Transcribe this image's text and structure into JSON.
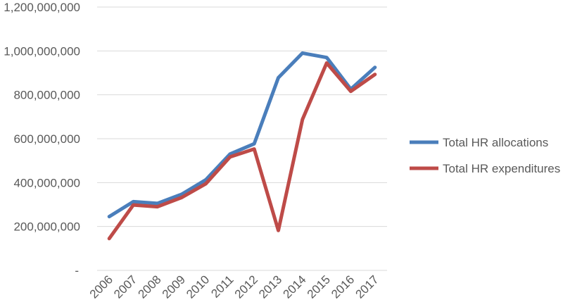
{
  "chart_data": {
    "type": "line",
    "title": "",
    "xlabel": "",
    "ylabel": "",
    "categories": [
      "2006",
      "2007",
      "2008",
      "2009",
      "2010",
      "2011",
      "2012",
      "2013",
      "2014",
      "2015",
      "2016",
      "2017"
    ],
    "series": [
      {
        "name": "Total HR allocations",
        "color": "#4a7ebb",
        "values": [
          245000000,
          313000000,
          305000000,
          347000000,
          413000000,
          530000000,
          577000000,
          878000000,
          990000000,
          970000000,
          826000000,
          925000000
        ]
      },
      {
        "name": "Total HR expenditures",
        "color": "#be4b48",
        "values": [
          145000000,
          298000000,
          290000000,
          332000000,
          395000000,
          517000000,
          553000000,
          182000000,
          688000000,
          945000000,
          816000000,
          893000000
        ]
      }
    ],
    "ylim": [
      0,
      1200000000
    ],
    "y_ticks": [
      0,
      200000000,
      400000000,
      600000000,
      800000000,
      1000000000,
      1200000000
    ],
    "y_tick_labels": [
      "-",
      "200,000,000",
      "400,000,000",
      "600,000,000",
      "800,000,000",
      "1,000,000,000",
      "1,200,000,000"
    ],
    "grid": true,
    "legend_position": "right",
    "gridline_color": "#d9d9d9"
  }
}
